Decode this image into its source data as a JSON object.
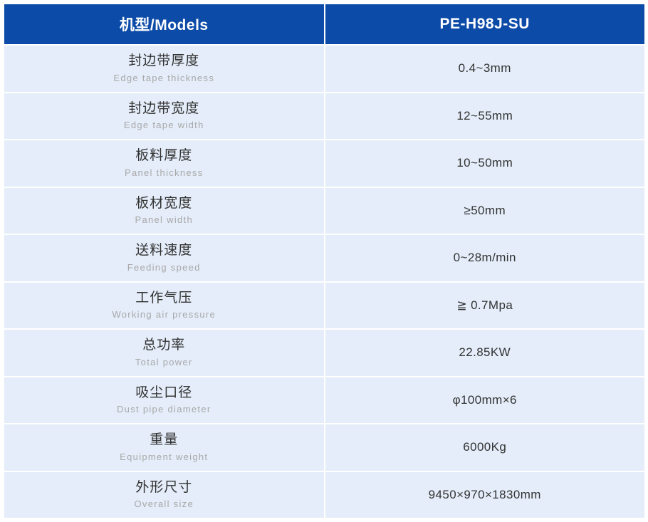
{
  "colors": {
    "header_bg": "#0C4BA8",
    "row_bg": "#E4EDF9",
    "page_bg": "#FFFFFF",
    "header_text": "#FFFFFF",
    "label_text": "#333333",
    "sublabel_text": "#A8A8A8",
    "value_text": "#333333"
  },
  "table": {
    "header": {
      "models_label": "机型/Models",
      "model_value": "PE-H98J-SU"
    },
    "rows": [
      {
        "label_cn": "封边带厚度",
        "label_en": "Edge tape thickness",
        "value": "0.4~3mm"
      },
      {
        "label_cn": "封边带宽度",
        "label_en": "Edge tape width",
        "value": "12~55mm"
      },
      {
        "label_cn": "板料厚度",
        "label_en": "Panel thickness",
        "value": "10~50mm"
      },
      {
        "label_cn": "板材宽度",
        "label_en": "Panel width",
        "value": "≥50mm"
      },
      {
        "label_cn": "送料速度",
        "label_en": "Feeding speed",
        "value": "0~28m/min"
      },
      {
        "label_cn": "工作气压",
        "label_en": "Working air pressure",
        "value": "≧ 0.7Mpa"
      },
      {
        "label_cn": "总功率",
        "label_en": "Total power",
        "value": "22.85KW"
      },
      {
        "label_cn": "吸尘口径",
        "label_en": "Dust pipe diameter",
        "value": "φ100mm×6"
      },
      {
        "label_cn": "重量",
        "label_en": "Equipment weight",
        "value": "6000Kg"
      },
      {
        "label_cn": "外形尺寸",
        "label_en": "Overall size",
        "value": "9450×970×1830mm"
      }
    ]
  }
}
